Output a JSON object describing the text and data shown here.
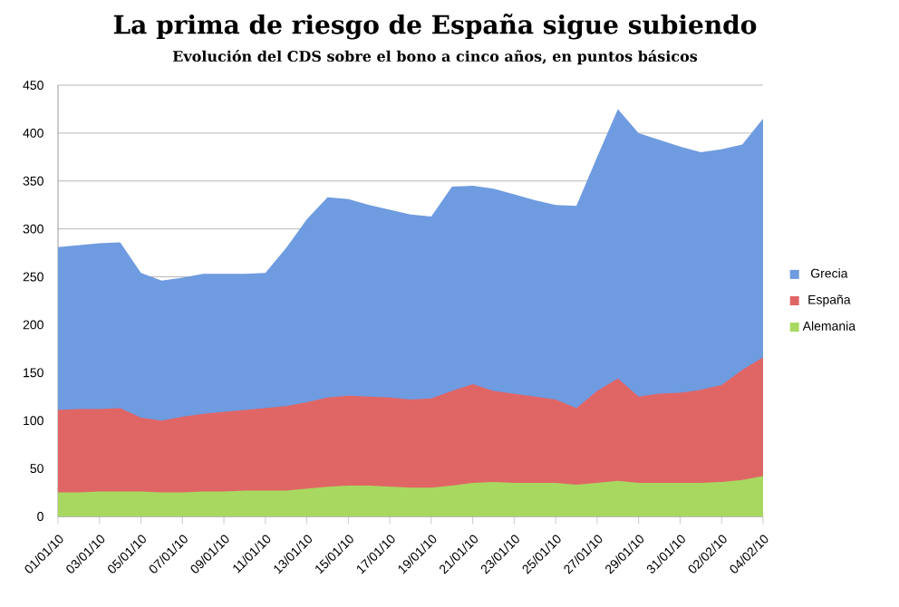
{
  "chart_data": {
    "type": "area",
    "title": "La prima de riesgo de España sigue subiendo",
    "subtitle": "Evolución del CDS sobre el bono a cinco años, en puntos básicos",
    "categories": [
      "01/01/10",
      null,
      "03/01/10",
      null,
      "05/01/10",
      null,
      "07/01/10",
      null,
      "09/01/10",
      null,
      "11/01/10",
      null,
      "13/01/10",
      null,
      "15/01/10",
      null,
      "17/01/10",
      null,
      "19/01/10",
      null,
      "21/01/10",
      null,
      "23/01/10",
      null,
      "25/01/10",
      null,
      "27/01/10",
      null,
      "29/01/10",
      null,
      "31/01/10",
      null,
      "02/02/10",
      null,
      "04/02/10"
    ],
    "series": [
      {
        "name": "Grecia",
        "color": "#6f9be0",
        "values": [
          281,
          283,
          285,
          286,
          254,
          246,
          249,
          253,
          253,
          253,
          254,
          280,
          310,
          333,
          331,
          325,
          320,
          315,
          313,
          344,
          345,
          342,
          336,
          330,
          325,
          324,
          375,
          425,
          400,
          393,
          386,
          380,
          383,
          388,
          415
        ]
      },
      {
        "name": "España",
        "color": "#e06666",
        "values": [
          111,
          112,
          112,
          113,
          103,
          100,
          104,
          107,
          109,
          111,
          113,
          115,
          119,
          124,
          126,
          125,
          124,
          122,
          123,
          131,
          138,
          131,
          128,
          125,
          122,
          113,
          131,
          144,
          125,
          128,
          129,
          132,
          137,
          153,
          166
        ]
      },
      {
        "name": "Alemania",
        "color": "#a8d860",
        "values": [
          25,
          25,
          26,
          26,
          26,
          25,
          25,
          26,
          26,
          27,
          27,
          27,
          29,
          31,
          32,
          32,
          31,
          30,
          30,
          32,
          35,
          36,
          35,
          35,
          35,
          33,
          35,
          37,
          35,
          35,
          35,
          35,
          36,
          38,
          42
        ]
      }
    ],
    "ylim": [
      0,
      450
    ],
    "yticks": [
      0,
      50,
      100,
      150,
      200,
      250,
      300,
      350,
      400,
      450
    ],
    "grid": "y",
    "legend": "right"
  }
}
